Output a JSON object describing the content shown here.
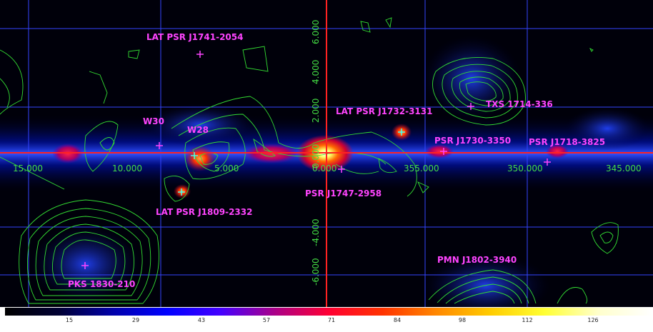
{
  "sources": [
    {
      "id": "lat-psr-j1741-2054",
      "label": "LAT PSR J1741-2054",
      "marker": "cross",
      "color": "#ff44ff"
    },
    {
      "id": "lat-psr-j1732-3131",
      "label": "LAT PSR J1732-3131",
      "marker": "cross",
      "color": "#ff44ff"
    },
    {
      "id": "txs-1714-336",
      "label": "TXS 1714-336",
      "marker": "cross",
      "color": "#ff44ff"
    },
    {
      "id": "w30",
      "label": "W30",
      "marker": "cross",
      "color": "#ff44ff"
    },
    {
      "id": "w28",
      "label": "W28",
      "marker": "cross",
      "color": "#44ffee"
    },
    {
      "id": "psr-j1730-3350",
      "label": "PSR J1730-3350",
      "marker": "cross",
      "color": "#ff44ff"
    },
    {
      "id": "psr-j1718-3825",
      "label": "PSR J1718-3825",
      "marker": "cross",
      "color": "#ff44ff"
    },
    {
      "id": "psr-j1747-2958",
      "label": "PSR J1747-2958",
      "marker": "cross",
      "color": "#ff44ff"
    },
    {
      "id": "lat-psr-j1809-2332",
      "label": "LAT PSR J1809-2332",
      "marker": "cross",
      "color": "#ff44ff"
    },
    {
      "id": "pks-1830-210",
      "label": "PKS 1830-210",
      "marker": "cross",
      "color": "#ff44ff"
    },
    {
      "id": "pmn-j1802-3940",
      "label": "PMN J1802-3940",
      "marker": "none",
      "color": "#ff44ff"
    }
  ],
  "axes": {
    "longitude_ticks": [
      "15.000",
      "10.000",
      "5.000",
      "0.000",
      "355.000",
      "350.000",
      "345.000"
    ],
    "latitude_ticks": [
      "6.000",
      "4.000",
      "2.000",
      "0.000",
      "-4.000",
      "-6.000"
    ],
    "axis_color": "#ff2222",
    "grid_color": "#3344ff",
    "tick_label_color_lon": "#44dd44",
    "tick_label_color_lat": "#44dd44",
    "contour_color": "#33dd33"
  },
  "colorbar": {
    "ticks": [
      "15",
      "29",
      "43",
      "57",
      "71",
      "84",
      "98",
      "112",
      "126"
    ],
    "stops": [
      "#000000",
      "#000033",
      "#0000aa",
      "#0000ff",
      "#4400ff",
      "#aa0088",
      "#ff0033",
      "#ff3300",
      "#ff8800",
      "#ffcc00",
      "#ffff33",
      "#ffffcc",
      "#ffffff"
    ]
  }
}
